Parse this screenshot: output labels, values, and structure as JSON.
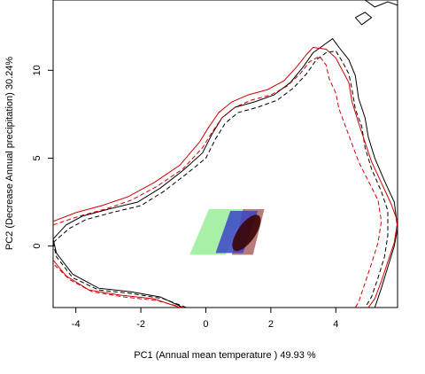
{
  "chart_data": {
    "type": "contour",
    "xlabel": "PC1 (Annual mean temperature ) 49.93 %",
    "ylabel": "PC2 (Decrease Annual precipitation) 30.24%",
    "xlim": [
      -4.7,
      5.9
    ],
    "ylim": [
      -3.5,
      14.0
    ],
    "xticks": [
      -4,
      -2,
      0,
      2,
      4
    ],
    "yticks": [
      0,
      5,
      10
    ],
    "grid": false,
    "series": [
      {
        "style": "black-solid",
        "points": [
          [
            -4.7,
            0.4
          ],
          [
            -4.3,
            1.2
          ],
          [
            -3.8,
            1.7
          ],
          [
            -3.0,
            2.1
          ],
          [
            -2.1,
            2.5
          ],
          [
            -1.4,
            3.3
          ],
          [
            -0.7,
            4.3
          ],
          [
            -0.1,
            5.3
          ],
          [
            0.2,
            6.4
          ],
          [
            0.5,
            7.3
          ],
          [
            0.9,
            7.9
          ],
          [
            1.5,
            8.2
          ],
          [
            2.1,
            8.6
          ],
          [
            2.6,
            9.3
          ],
          [
            3.0,
            10.2
          ],
          [
            3.3,
            11.0
          ],
          [
            3.6,
            11.4
          ],
          [
            3.9,
            11.8
          ],
          [
            4.1,
            11.3
          ],
          [
            4.4,
            10.6
          ],
          [
            4.6,
            9.7
          ],
          [
            4.7,
            8.4
          ],
          [
            4.9,
            7.3
          ],
          [
            5.0,
            6.2
          ],
          [
            5.2,
            5.0
          ],
          [
            5.5,
            3.7
          ],
          [
            5.8,
            2.5
          ],
          [
            5.9,
            1.0
          ],
          [
            5.8,
            0.0
          ],
          [
            5.6,
            -1.2
          ],
          [
            5.4,
            -2.4
          ],
          [
            5.2,
            -3.5
          ]
        ],
        "points2": [
          [
            -0.7,
            -3.5
          ],
          [
            -1.4,
            -2.9
          ],
          [
            -2.3,
            -2.6
          ],
          [
            -3.3,
            -2.4
          ],
          [
            -4.1,
            -1.6
          ],
          [
            -4.6,
            -0.4
          ],
          [
            -4.7,
            0.4
          ]
        ]
      },
      {
        "style": "black-dashed",
        "points": [
          [
            -4.7,
            0.2
          ],
          [
            -4.2,
            1.0
          ],
          [
            -3.7,
            1.5
          ],
          [
            -2.9,
            1.9
          ],
          [
            -2.0,
            2.3
          ],
          [
            -1.3,
            3.1
          ],
          [
            -0.6,
            4.1
          ],
          [
            0.0,
            5.0
          ],
          [
            0.3,
            6.1
          ],
          [
            0.6,
            7.0
          ],
          [
            1.0,
            7.6
          ],
          [
            1.6,
            7.9
          ],
          [
            2.2,
            8.3
          ],
          [
            2.7,
            9.0
          ],
          [
            3.1,
            9.8
          ],
          [
            3.4,
            10.6
          ],
          [
            3.7,
            11.0
          ],
          [
            4.0,
            11.1
          ],
          [
            4.2,
            10.5
          ],
          [
            4.4,
            9.8
          ],
          [
            4.5,
            8.9
          ],
          [
            4.6,
            7.8
          ],
          [
            4.8,
            6.8
          ],
          [
            4.9,
            5.6
          ],
          [
            5.1,
            4.4
          ],
          [
            5.4,
            3.1
          ],
          [
            5.6,
            2.0
          ],
          [
            5.6,
            0.6
          ],
          [
            5.5,
            -0.6
          ],
          [
            5.3,
            -1.8
          ],
          [
            5.1,
            -2.9
          ],
          [
            4.9,
            -3.5
          ]
        ],
        "points2": [
          [
            -0.6,
            -3.5
          ],
          [
            -1.3,
            -3.0
          ],
          [
            -2.3,
            -2.7
          ],
          [
            -3.3,
            -2.5
          ],
          [
            -4.1,
            -1.8
          ],
          [
            -4.6,
            -0.6
          ],
          [
            -4.7,
            0.2
          ]
        ]
      },
      {
        "style": "red-solid",
        "points": [
          [
            -4.7,
            1.4
          ],
          [
            -4.0,
            1.9
          ],
          [
            -3.2,
            2.3
          ],
          [
            -2.4,
            2.8
          ],
          [
            -1.6,
            3.6
          ],
          [
            -0.8,
            4.6
          ],
          [
            -0.2,
            5.9
          ],
          [
            0.1,
            6.8
          ],
          [
            0.4,
            7.6
          ],
          [
            0.8,
            8.2
          ],
          [
            1.3,
            8.6
          ],
          [
            1.9,
            8.9
          ],
          [
            2.4,
            9.4
          ],
          [
            2.8,
            10.2
          ],
          [
            3.1,
            10.9
          ],
          [
            3.3,
            11.3
          ],
          [
            3.7,
            11.2
          ],
          [
            4.0,
            10.7
          ],
          [
            4.2,
            10.0
          ],
          [
            4.4,
            9.3
          ],
          [
            4.5,
            8.2
          ],
          [
            4.7,
            7.0
          ],
          [
            4.9,
            5.9
          ],
          [
            5.1,
            4.8
          ],
          [
            5.4,
            3.6
          ],
          [
            5.7,
            2.4
          ],
          [
            5.9,
            1.4
          ],
          [
            5.8,
            0.2
          ],
          [
            5.6,
            -0.9
          ],
          [
            5.4,
            -2.0
          ],
          [
            5.2,
            -3.0
          ],
          [
            5.0,
            -3.5
          ]
        ],
        "points2": [
          [
            -0.8,
            -3.5
          ],
          [
            -1.6,
            -3.0
          ],
          [
            -2.6,
            -2.8
          ],
          [
            -3.6,
            -2.5
          ],
          [
            -4.3,
            -1.7
          ],
          [
            -4.7,
            -0.8
          ]
        ]
      },
      {
        "style": "red-dashed",
        "points": [
          [
            -4.7,
            1.2
          ],
          [
            -3.9,
            1.7
          ],
          [
            -3.1,
            2.1
          ],
          [
            -2.3,
            2.6
          ],
          [
            -1.5,
            3.4
          ],
          [
            -0.7,
            4.4
          ],
          [
            -0.1,
            5.6
          ],
          [
            0.2,
            6.5
          ],
          [
            0.5,
            7.3
          ],
          [
            0.9,
            7.9
          ],
          [
            1.4,
            8.3
          ],
          [
            2.0,
            8.6
          ],
          [
            2.5,
            9.1
          ],
          [
            2.9,
            9.8
          ],
          [
            3.2,
            10.5
          ],
          [
            3.5,
            10.8
          ],
          [
            3.7,
            10.3
          ],
          [
            3.8,
            9.5
          ],
          [
            4.0,
            8.7
          ],
          [
            4.1,
            7.8
          ],
          [
            4.3,
            6.8
          ],
          [
            4.5,
            5.8
          ],
          [
            4.7,
            4.8
          ],
          [
            5.0,
            3.7
          ],
          [
            5.3,
            2.6
          ],
          [
            5.4,
            1.4
          ],
          [
            5.3,
            0.2
          ],
          [
            5.1,
            -1.0
          ],
          [
            4.9,
            -2.1
          ],
          [
            4.7,
            -3.2
          ],
          [
            4.6,
            -3.5
          ]
        ],
        "points2": [
          [
            -0.7,
            -3.5
          ],
          [
            -1.5,
            -3.1
          ],
          [
            -2.5,
            -2.9
          ],
          [
            -3.5,
            -2.6
          ],
          [
            -4.2,
            -1.9
          ],
          [
            -4.7,
            -1.0
          ]
        ]
      }
    ],
    "top_right_contour": [
      [
        4.9,
        14.0
      ],
      [
        5.2,
        13.6
      ],
      [
        5.6,
        13.9
      ],
      [
        5.9,
        13.7
      ]
    ],
    "top_right_contour2": [
      [
        4.6,
        13.0
      ],
      [
        4.9,
        13.3
      ],
      [
        5.1,
        13.0
      ],
      [
        4.8,
        12.6
      ],
      [
        4.6,
        13.0
      ]
    ],
    "density_green": {
      "x": [
        -0.5,
        1.2
      ],
      "y": [
        -0.5,
        2.1
      ],
      "color": "#a8f0a8"
    },
    "density_blue": {
      "x": [
        0.3,
        1.6
      ],
      "y": [
        -0.4,
        2.0
      ],
      "color": "#3a44c8"
    },
    "density_red": {
      "x": [
        0.8,
        1.8
      ],
      "y": [
        -0.5,
        2.1
      ],
      "color": "#7a1010"
    }
  }
}
